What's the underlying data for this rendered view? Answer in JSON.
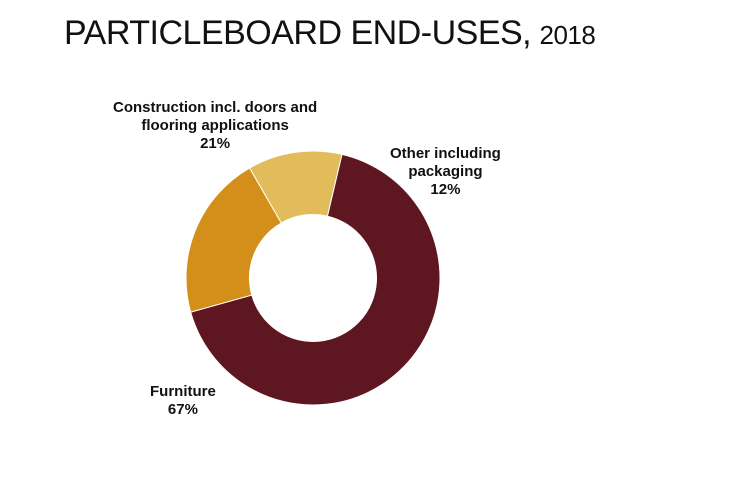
{
  "chart_data": {
    "type": "pie",
    "title": "PARTICLEBOARD END-USES,",
    "subtitle": "2018",
    "categories": [
      "Other including packaging",
      "Furniture",
      "Construction incl. doors and flooring applications"
    ],
    "values": [
      12,
      67,
      21
    ],
    "value_labels": [
      "12%",
      "67%",
      "21%"
    ],
    "label_lines": [
      [
        "Other including",
        "packaging"
      ],
      [
        "Furniture"
      ],
      [
        "Construction incl. doors and",
        "flooring applications"
      ]
    ],
    "colors": [
      "#e2bc5a",
      "#5e1621",
      "#d48f1a"
    ],
    "hole_fraction": 0.5,
    "legend": "none",
    "grid": false
  }
}
